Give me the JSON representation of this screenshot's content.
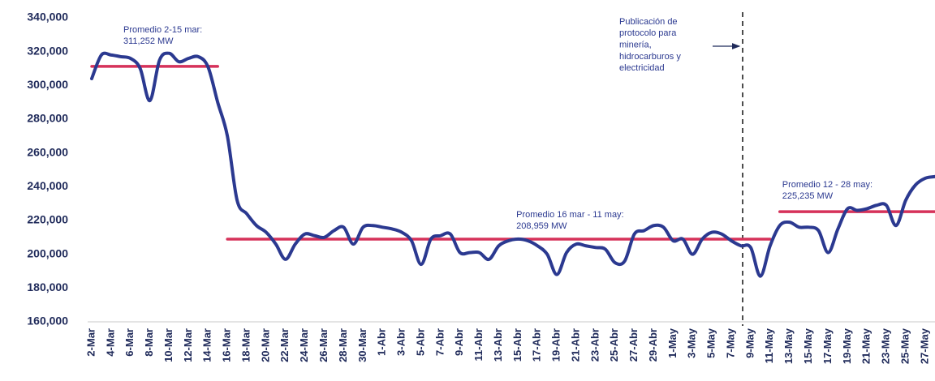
{
  "chart_data": {
    "type": "line",
    "categories": [
      "2-Mar",
      null,
      "4-Mar",
      null,
      "6-Mar",
      null,
      "8-Mar",
      null,
      "10-Mar",
      null,
      "12-Mar",
      null,
      "14-Mar",
      null,
      "16-Mar",
      null,
      "18-Mar",
      null,
      "20-Mar",
      null,
      "22-Mar",
      null,
      "24-Mar",
      null,
      "26-Mar",
      null,
      "28-Mar",
      null,
      "30-Mar",
      null,
      "1-Abr",
      null,
      "3-Abr",
      null,
      "5-Abr",
      null,
      "7-Abr",
      null,
      "9-Abr",
      null,
      "11-Abr",
      null,
      "13-Abr",
      null,
      "15-Abr",
      null,
      "17-Abr",
      null,
      "19-Abr",
      null,
      "21-Abr",
      null,
      "23-Abr",
      null,
      "25-Abr",
      null,
      "27-Abr",
      null,
      "29-Abr",
      null,
      "1-May",
      null,
      "3-May",
      null,
      "5-May",
      null,
      "7-May",
      null,
      "9-May",
      null,
      "11-May",
      null,
      "13-May",
      null,
      "15-May",
      null,
      "17-May",
      null,
      "19-May",
      null,
      "21-May",
      null,
      "23-May",
      null,
      "25-May",
      null,
      "27-May",
      null
    ],
    "series": [
      {
        "color": "#2b3990",
        "values": [
          304000,
          318000,
          318000,
          317000,
          316000,
          310000,
          291000,
          315000,
          319000,
          314000,
          316000,
          317000,
          311000,
          290000,
          270000,
          232000,
          224000,
          217000,
          213000,
          206000,
          197000,
          206000,
          212000,
          211000,
          210000,
          214000,
          216000,
          206000,
          216000,
          217000,
          216000,
          215000,
          213000,
          208000,
          194000,
          209000,
          211000,
          212000,
          201000,
          201000,
          201000,
          197000,
          205000,
          208000,
          209000,
          208000,
          205000,
          200000,
          188000,
          201000,
          206000,
          205000,
          204000,
          203000,
          195000,
          196000,
          212000,
          214000,
          217000,
          216000,
          208000,
          209000,
          200000,
          209000,
          213000,
          212000,
          208000,
          205000,
          204000,
          187000,
          205000,
          217000,
          219000,
          216000,
          216000,
          214000,
          201000,
          215000,
          227000,
          226000,
          227000,
          229000,
          229000,
          217000,
          232000,
          241000,
          245000,
          246000
        ]
      }
    ],
    "averages": [
      {
        "name": "Promedio 2-15 mar:",
        "value_label": "311,252 MW",
        "color": "#d6325a",
        "values": [
          311252,
          311252,
          311252,
          311252,
          311252,
          311252,
          311252,
          311252,
          311252,
          311252,
          311252,
          311252,
          311252,
          311252,
          null,
          null,
          null,
          null,
          null,
          null,
          null,
          null,
          null,
          null,
          null,
          null,
          null,
          null,
          null,
          null,
          null,
          null,
          null,
          null,
          null,
          null,
          null,
          null,
          null,
          null,
          null,
          null,
          null,
          null,
          null,
          null,
          null,
          null,
          null,
          null,
          null,
          null,
          null,
          null,
          null,
          null,
          null,
          null,
          null,
          null,
          null,
          null,
          null,
          null,
          null,
          null,
          null,
          null,
          null,
          null,
          null,
          null,
          null,
          null,
          null,
          null,
          null,
          null,
          null,
          null,
          null,
          null,
          null,
          null,
          null,
          null,
          null,
          null
        ]
      },
      {
        "name": "Promedio 16 mar - 11 may:",
        "value_label": "208,959 MW",
        "color": "#d6325a",
        "values": [
          null,
          null,
          null,
          null,
          null,
          null,
          null,
          null,
          null,
          null,
          null,
          null,
          null,
          null,
          208959,
          208959,
          208959,
          208959,
          208959,
          208959,
          208959,
          208959,
          208959,
          208959,
          208959,
          208959,
          208959,
          208959,
          208959,
          208959,
          208959,
          208959,
          208959,
          208959,
          208959,
          208959,
          208959,
          208959,
          208959,
          208959,
          208959,
          208959,
          208959,
          208959,
          208959,
          208959,
          208959,
          208959,
          208959,
          208959,
          208959,
          208959,
          208959,
          208959,
          208959,
          208959,
          208959,
          208959,
          208959,
          208959,
          208959,
          208959,
          208959,
          208959,
          208959,
          208959,
          208959,
          208959,
          208959,
          208959,
          208959,
          null,
          null,
          null,
          null,
          null,
          null,
          null,
          null,
          null,
          null,
          null,
          null,
          null,
          null,
          null,
          null,
          null
        ]
      },
      {
        "name": "Promedio 12 - 28 may:",
        "value_label": "225,235 MW",
        "color": "#d6325a",
        "values": [
          null,
          null,
          null,
          null,
          null,
          null,
          null,
          null,
          null,
          null,
          null,
          null,
          null,
          null,
          null,
          null,
          null,
          null,
          null,
          null,
          null,
          null,
          null,
          null,
          null,
          null,
          null,
          null,
          null,
          null,
          null,
          null,
          null,
          null,
          null,
          null,
          null,
          null,
          null,
          null,
          null,
          null,
          null,
          null,
          null,
          null,
          null,
          null,
          null,
          null,
          null,
          null,
          null,
          null,
          null,
          null,
          null,
          null,
          null,
          null,
          null,
          null,
          null,
          null,
          null,
          null,
          null,
          null,
          null,
          null,
          null,
          225235,
          225235,
          225235,
          225235,
          225235,
          225235,
          225235,
          225235,
          225235,
          225235,
          225235,
          225235,
          225235,
          225235,
          225235,
          225235,
          225235
        ]
      }
    ],
    "event": {
      "lines": [
        "Publicación de",
        "protocolo para",
        "minería,",
        "hidrocarburos y",
        "electricidad"
      ]
    },
    "ylim": [
      160000,
      340000
    ],
    "yticks": [
      {
        "value": 160000,
        "label": "160,000"
      },
      {
        "value": 180000,
        "label": "180,000"
      },
      {
        "value": 200000,
        "label": "200,000"
      },
      {
        "value": 220000,
        "label": "220,000"
      },
      {
        "value": 240000,
        "label": "240,000"
      },
      {
        "value": 260000,
        "label": "260,000"
      },
      {
        "value": 280000,
        "label": "280,000"
      },
      {
        "value": 300000,
        "label": "300,000"
      },
      {
        "value": 320000,
        "label": "320,000"
      },
      {
        "value": 340000,
        "label": "340,000"
      }
    ],
    "grid": false
  }
}
